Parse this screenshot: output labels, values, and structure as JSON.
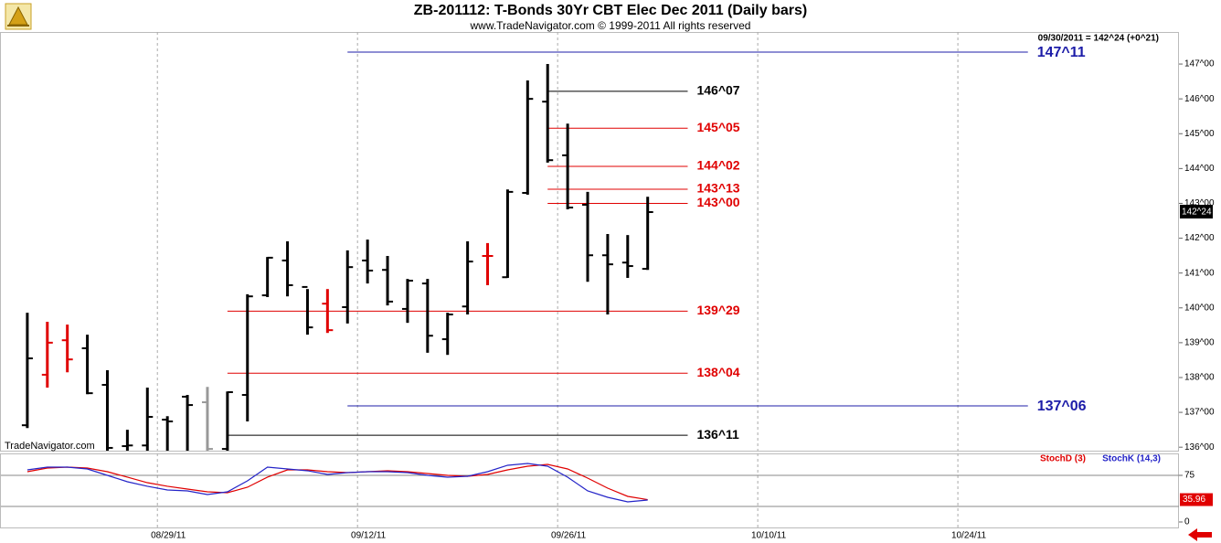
{
  "chart_data": [
    {
      "type": "ohlc",
      "title": "ZB-201112:  T-Bonds 30Yr CBT Elec Dec 2011  (Daily bars)",
      "subtitle": "www.TradeNavigator.com © 1999-2011 All rights reserved",
      "info": "09/30/2011 = 142^24 (+0^21)",
      "watermark": "TradeNavigator.com",
      "x": [
        "2011-08-18",
        "2011-08-19",
        "2011-08-22",
        "2011-08-23",
        "2011-08-24",
        "2011-08-25",
        "2011-08-26",
        "2011-08-29",
        "2011-08-30",
        "2011-08-31",
        "2011-09-01",
        "2011-09-02",
        "2011-09-05",
        "2011-09-06",
        "2011-09-07",
        "2011-09-08",
        "2011-09-09",
        "2011-09-12",
        "2011-09-13",
        "2011-09-14",
        "2011-09-15",
        "2011-09-16",
        "2011-09-19",
        "2011-09-20",
        "2011-09-21",
        "2011-09-22",
        "2011-09-23",
        "2011-09-26",
        "2011-09-27",
        "2011-09-28",
        "2011-09-29",
        "2011-09-30"
      ],
      "open": [
        136.63,
        138.08,
        139.07,
        138.84,
        137.79,
        136.03,
        136.05,
        136.79,
        137.45,
        137.29,
        135.95,
        137.5,
        140.36,
        141.36,
        140.6,
        140.12,
        140.02,
        141.36,
        141.09,
        139.97,
        140.7,
        139.1,
        140.04,
        141.49,
        140.88,
        143.3,
        145.92,
        144.38,
        142.96,
        141.51,
        141.3,
        141.12
      ],
      "high": [
        139.86,
        139.6,
        139.52,
        139.23,
        138.21,
        136.5,
        137.71,
        136.89,
        137.5,
        137.73,
        137.6,
        140.39,
        141.46,
        141.91,
        140.54,
        140.54,
        141.65,
        141.96,
        141.49,
        140.83,
        140.83,
        139.86,
        141.91,
        141.86,
        143.4,
        146.53,
        147,
        145.29,
        143.33,
        142.12,
        142.09,
        143.19
      ],
      "low": [
        136.55,
        137.71,
        138.15,
        137.52,
        135.9,
        135.9,
        135.9,
        135.9,
        135.9,
        135.9,
        135.9,
        136.74,
        140.31,
        140.33,
        139.23,
        139.28,
        139.55,
        140.7,
        140.07,
        139.57,
        138.71,
        138.65,
        139.81,
        140.65,
        140.86,
        143.25,
        144.17,
        142.83,
        140.75,
        139.81,
        140.86,
        141.09
      ],
      "close": [
        138.55,
        139,
        138.52,
        137.55,
        135.98,
        136.05,
        136.87,
        136.74,
        137.21,
        135.95,
        137.58,
        140.33,
        141.44,
        140.65,
        139.44,
        139.36,
        141.17,
        141.07,
        140.18,
        140.78,
        139.2,
        139.81,
        141.33,
        141.49,
        143.33,
        146,
        144.24,
        142.88,
        141.51,
        141.25,
        141.2,
        142.75
      ],
      "colors": [
        "#000000",
        "#e00000",
        "#e00000",
        "#000000",
        "#000000",
        "#000000",
        "#000000",
        "#000000",
        "#000000",
        "#999999",
        "#000000",
        "#000000",
        "#000000",
        "#000000",
        "#000000",
        "#e00000",
        "#000000",
        "#000000",
        "#000000",
        "#000000",
        "#000000",
        "#000000",
        "#000000",
        "#e00000",
        "#000000",
        "#000000",
        "#000000",
        "#000000",
        "#000000",
        "#000000",
        "#000000",
        "#000000"
      ],
      "xlim": [
        "2011-08-17",
        "2011-11-07"
      ],
      "xticks": [
        {
          "value": "2011-08-29",
          "label": "08/29/11"
        },
        {
          "value": "2011-09-12",
          "label": "09/12/11"
        },
        {
          "value": "2011-09-26",
          "label": "09/26/11"
        },
        {
          "value": "2011-10-10",
          "label": "10/10/11"
        },
        {
          "value": "2011-10-24",
          "label": "10/24/11"
        }
      ],
      "ylim": [
        135.9,
        147.92
      ],
      "yticks": [
        {
          "value": 136,
          "label": "136^00"
        },
        {
          "value": 137,
          "label": "137^00"
        },
        {
          "value": 138,
          "label": "138^00"
        },
        {
          "value": 139,
          "label": "139^00"
        },
        {
          "value": 140,
          "label": "140^00"
        },
        {
          "value": 141,
          "label": "141^00"
        },
        {
          "value": 142,
          "label": "142^00"
        },
        {
          "value": 143,
          "label": "143^00"
        },
        {
          "value": 144,
          "label": "144^00"
        },
        {
          "value": 145,
          "label": "145^00"
        },
        {
          "value": 146,
          "label": "146^00"
        },
        {
          "value": 147,
          "label": "147^00"
        }
      ],
      "grid": true,
      "last_price": {
        "value": 142.75,
        "label": "142^24"
      },
      "levels": [
        {
          "value": 147.34375,
          "label": "147^11",
          "color": "#1c1ca8",
          "from": "2011-09-09",
          "to": "2011-10-27"
        },
        {
          "value": 146.21875,
          "label": "146^07",
          "color": "#000000",
          "from": "2011-09-23",
          "to": "2011-10-04"
        },
        {
          "value": 145.15625,
          "label": "145^05",
          "color": "#e00000",
          "from": "2011-09-23",
          "to": "2011-10-04"
        },
        {
          "value": 144.0625,
          "label": "144^02",
          "color": "#e00000",
          "from": "2011-09-23",
          "to": "2011-10-04"
        },
        {
          "value": 143.40625,
          "label": "143^13",
          "color": "#e00000",
          "from": "2011-09-23",
          "to": "2011-10-04"
        },
        {
          "value": 143,
          "label": "143^00",
          "color": "#e00000",
          "from": "2011-09-23",
          "to": "2011-10-04"
        },
        {
          "value": 139.90625,
          "label": "139^29",
          "color": "#e00000",
          "from": "2011-09-01",
          "to": "2011-10-04"
        },
        {
          "value": 138.125,
          "label": "138^04",
          "color": "#e00000",
          "from": "2011-09-01",
          "to": "2011-10-04"
        },
        {
          "value": 137.1875,
          "label": "137^06",
          "color": "#1c1ca8",
          "from": "2011-09-09",
          "to": "2011-10-27"
        },
        {
          "value": 136.34375,
          "label": "136^11",
          "color": "#000000",
          "from": "2011-09-01",
          "to": "2011-10-04"
        }
      ]
    },
    {
      "type": "line",
      "series": [
        {
          "name": "StochD (3)",
          "color": "#e00000",
          "values": [
            80.9,
            86.8,
            88.2,
            86.8,
            80.9,
            72.1,
            63.2,
            57.4,
            52.9,
            48.5,
            47.1,
            55.9,
            72.1,
            83.8,
            83.8,
            80.9,
            79.4,
            80.9,
            82.4,
            80.9,
            77.9,
            75,
            73.5,
            76.5,
            83.8,
            89.7,
            92.6,
            85.3,
            70.6,
            54.4,
            41.2,
            35.96
          ]
        },
        {
          "name": "StochK (14,3)",
          "color": "#2424c8",
          "values": [
            83.8,
            88.2,
            88.2,
            85.3,
            75,
            64.7,
            57.4,
            51.5,
            50,
            44.1,
            48.5,
            66.2,
            88.2,
            85.3,
            82.4,
            76.5,
            79.4,
            80.9,
            80.9,
            79.4,
            75,
            72.1,
            73.5,
            80.9,
            91.2,
            94.1,
            89.7,
            72.1,
            50,
            39.7,
            32.4,
            35.3
          ]
        }
      ],
      "ylim": [
        -10.3,
        110.3
      ],
      "yticks": [
        0,
        75
      ],
      "levels": [
        25,
        75
      ]
    }
  ]
}
